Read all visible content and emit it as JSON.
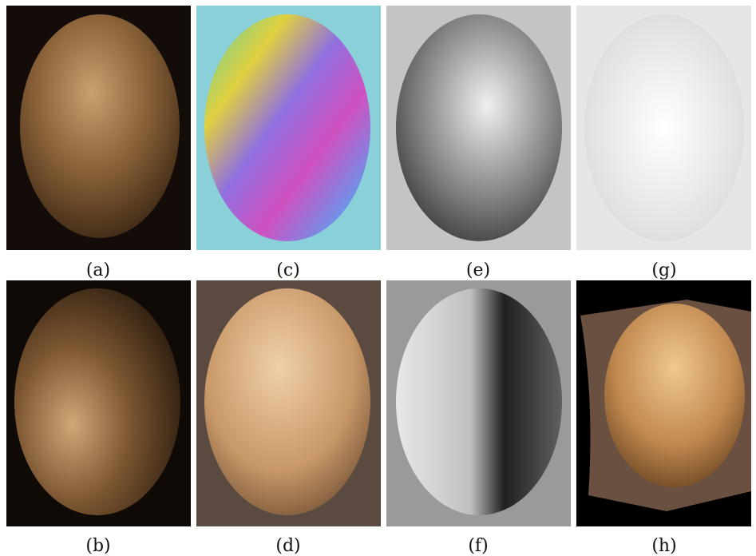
{
  "figure": {
    "panels": [
      {
        "caption": "(a)"
      },
      {
        "caption": "(c)"
      },
      {
        "caption": "(e)"
      },
      {
        "caption": "(g)"
      },
      {
        "caption": "(b)"
      },
      {
        "caption": "(d)"
      },
      {
        "caption": "(f)"
      },
      {
        "caption": "(h)"
      }
    ]
  }
}
